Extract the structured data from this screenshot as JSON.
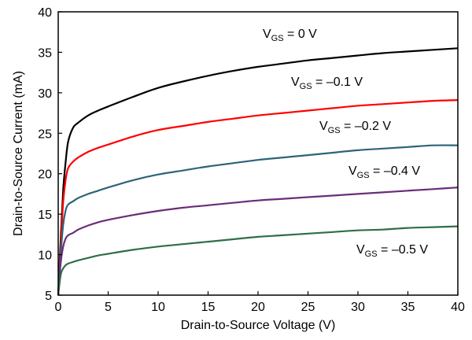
{
  "chart_data": {
    "type": "line",
    "title": "",
    "xlabel": "Drain-to-Source Voltage (V)",
    "ylabel": "Drain-to-Source Current (mA)",
    "xlim": [
      0,
      40
    ],
    "ylim": [
      5,
      40
    ],
    "xticks": [
      0,
      5,
      10,
      15,
      20,
      25,
      30,
      35,
      40
    ],
    "yticks": [
      5,
      10,
      15,
      20,
      25,
      30,
      35,
      40
    ],
    "grid": false,
    "legend": "none",
    "x": [
      0,
      0.25,
      0.5,
      0.75,
      1,
      1.5,
      2,
      3,
      4,
      5,
      7.5,
      10,
      12.5,
      15,
      17.5,
      20,
      22.5,
      25,
      27.5,
      30,
      32.5,
      35,
      37.5,
      40
    ],
    "series": [
      {
        "name": "VGS = 0 V",
        "color": "#000000",
        "values": [
          5,
          12,
          18,
          21.5,
          24,
          25.7,
          26.3,
          27.2,
          27.8,
          28.3,
          29.5,
          30.6,
          31.4,
          32.1,
          32.7,
          33.2,
          33.6,
          34,
          34.3,
          34.6,
          34.9,
          35.1,
          35.3,
          35.5
        ]
      },
      {
        "name": "VGS = -0.1 V",
        "color": "#ff0000",
        "values": [
          5,
          11,
          16.5,
          19.3,
          20.7,
          21.5,
          22,
          22.7,
          23.2,
          23.6,
          24.6,
          25.4,
          25.9,
          26.4,
          26.8,
          27.2,
          27.5,
          27.8,
          28.1,
          28.4,
          28.6,
          28.8,
          29,
          29.1
        ]
      },
      {
        "name": "VGS = -0.2 V",
        "color": "#2d6478",
        "values": [
          5,
          10,
          13.7,
          15.5,
          16.2,
          16.6,
          17,
          17.5,
          17.9,
          18.3,
          19.2,
          19.9,
          20.4,
          20.9,
          21.3,
          21.7,
          22,
          22.3,
          22.6,
          22.9,
          23.1,
          23.3,
          23.5,
          23.5
        ]
      },
      {
        "name": "VGS = -0.4 V",
        "color": "#6a2d7a",
        "values": [
          5,
          9,
          11,
          12,
          12.4,
          12.7,
          13.1,
          13.6,
          14,
          14.3,
          14.9,
          15.4,
          15.8,
          16.1,
          16.4,
          16.7,
          16.9,
          17.1,
          17.3,
          17.5,
          17.7,
          17.9,
          18.1,
          18.3
        ]
      },
      {
        "name": "VGS = -0.5 V",
        "color": "#2f6e48",
        "values": [
          5,
          7.5,
          8.3,
          8.7,
          8.9,
          9.1,
          9.3,
          9.6,
          9.9,
          10.1,
          10.6,
          11,
          11.3,
          11.6,
          11.9,
          12.2,
          12.4,
          12.6,
          12.8,
          13,
          13.1,
          13.3,
          13.4,
          13.5
        ]
      }
    ],
    "annotations": [
      {
        "main": "V",
        "sub": "GS",
        "rest": " = 0 V"
      },
      {
        "main": "V",
        "sub": "GS",
        "rest": " = –0.1 V"
      },
      {
        "main": "V",
        "sub": "GS",
        "rest": " = –0.2 V"
      },
      {
        "main": "V",
        "sub": "GS",
        "rest": " = –0.4 V"
      },
      {
        "main": "V",
        "sub": "GS",
        "rest": " = –0.5 V"
      }
    ]
  }
}
